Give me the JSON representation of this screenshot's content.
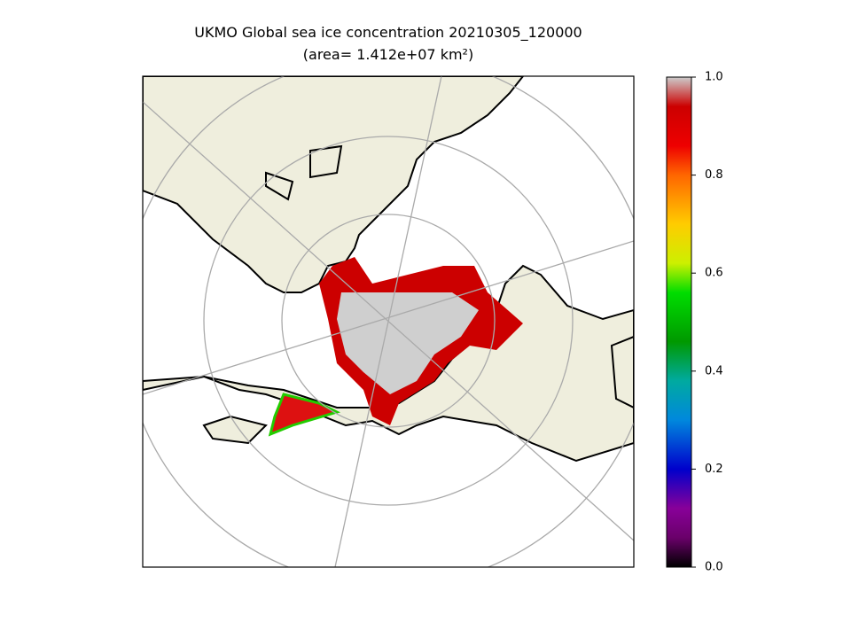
{
  "map": {
    "title": "UKMO Global sea ice concentration 20210305_120000",
    "subtitle": "(area= 1.412e+07 km²)",
    "colorbar": {
      "lim": [
        0,
        1
      ],
      "ticks": [
        {
          "value": 0,
          "label": "0.0"
        },
        {
          "value": 0.2,
          "label": "0.2"
        },
        {
          "value": 0.4,
          "label": "0.4"
        },
        {
          "value": 0.6,
          "label": "0.6"
        },
        {
          "value": 0.8,
          "label": "0.8"
        },
        {
          "value": 1,
          "label": "1.0"
        }
      ]
    }
  }
}
